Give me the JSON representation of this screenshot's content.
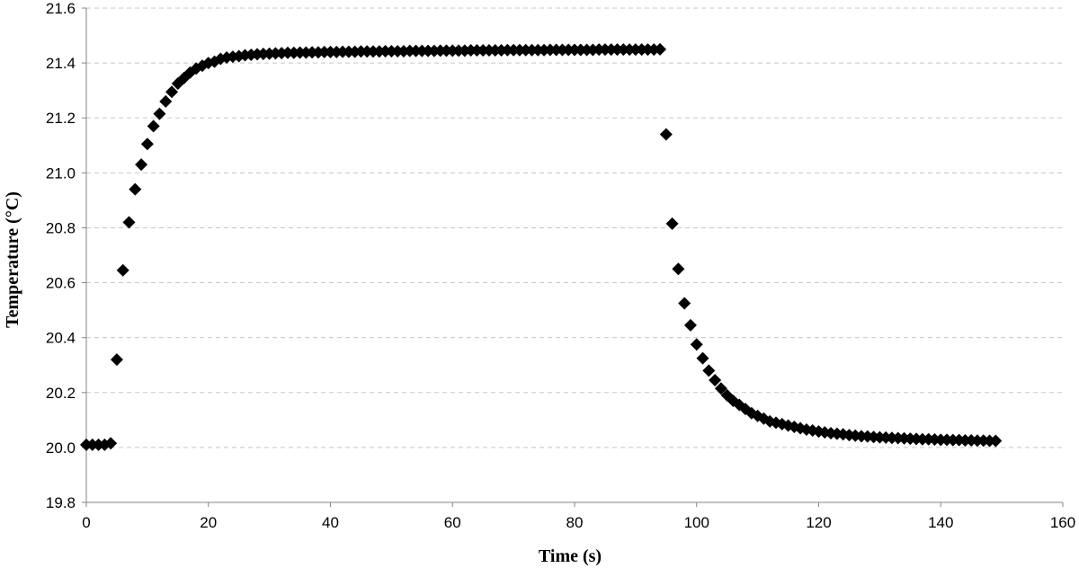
{
  "chart_data": {
    "type": "scatter",
    "title": "",
    "xlabel": "Time (s)",
    "ylabel": "Temperature (°C)",
    "xlim": [
      0,
      160
    ],
    "ylim": [
      19.8,
      21.6
    ],
    "xticks": [
      0,
      20,
      40,
      60,
      80,
      100,
      120,
      140,
      160
    ],
    "xtick_labels": [
      "0",
      "20",
      "40",
      "60",
      "80",
      "100",
      "120",
      "140",
      "160"
    ],
    "yticks": [
      19.8,
      20.0,
      20.2,
      20.4,
      20.6,
      20.8,
      21.0,
      21.2,
      21.4,
      21.6
    ],
    "ytick_labels": [
      "19.8",
      "20.0",
      "20.2",
      "20.4",
      "20.6",
      "20.8",
      "21.0",
      "21.2",
      "21.4",
      "21.6"
    ],
    "grid": "horizontal dashed",
    "legend": "none",
    "marker": "diamond",
    "marker_color": "#000000",
    "series": [
      {
        "x": [
          0,
          1,
          2,
          3,
          4,
          5,
          6,
          7,
          8,
          9,
          10,
          11,
          12,
          13,
          14,
          15,
          16,
          17,
          18,
          19,
          20,
          21,
          22,
          23,
          24,
          25,
          26,
          27,
          28,
          29,
          30,
          31,
          32,
          33,
          34,
          35,
          36,
          37,
          38,
          39,
          40,
          41,
          42,
          43,
          44,
          45,
          46,
          47,
          48,
          49,
          50,
          51,
          52,
          53,
          54,
          55,
          56,
          57,
          58,
          59,
          60,
          61,
          62,
          63,
          64,
          65,
          66,
          67,
          68,
          69,
          70,
          71,
          72,
          73,
          74,
          75,
          76,
          77,
          78,
          79,
          80,
          81,
          82,
          83,
          84,
          85,
          86,
          87,
          88,
          89,
          90,
          91,
          92,
          93,
          94,
          95,
          96,
          97,
          98,
          99,
          100,
          101,
          102,
          103,
          104,
          105,
          106,
          107,
          108,
          109,
          110,
          111,
          112,
          113,
          114,
          115,
          116,
          117,
          118,
          119,
          120,
          121,
          122,
          123,
          124,
          125,
          126,
          127,
          128,
          129,
          130,
          131,
          132,
          133,
          134,
          135,
          136,
          137,
          138,
          139,
          140,
          141,
          142,
          143,
          144,
          145,
          146,
          147,
          148,
          149
        ],
        "y": [
          20.01,
          20.01,
          20.01,
          20.01,
          20.015,
          20.32,
          20.645,
          20.82,
          20.94,
          21.03,
          21.105,
          21.17,
          21.215,
          21.26,
          21.295,
          21.325,
          21.345,
          21.365,
          21.38,
          21.39,
          21.4,
          21.405,
          21.415,
          21.42,
          21.423,
          21.425,
          21.428,
          21.43,
          21.432,
          21.433,
          21.434,
          21.435,
          21.436,
          21.437,
          21.437,
          21.438,
          21.438,
          21.439,
          21.439,
          21.44,
          21.44,
          21.44,
          21.441,
          21.441,
          21.441,
          21.442,
          21.442,
          21.442,
          21.442,
          21.443,
          21.443,
          21.443,
          21.443,
          21.444,
          21.444,
          21.444,
          21.444,
          21.444,
          21.445,
          21.445,
          21.445,
          21.445,
          21.445,
          21.446,
          21.446,
          21.446,
          21.446,
          21.446,
          21.446,
          21.447,
          21.447,
          21.447,
          21.447,
          21.447,
          21.447,
          21.447,
          21.448,
          21.448,
          21.448,
          21.448,
          21.448,
          21.448,
          21.448,
          21.448,
          21.449,
          21.449,
          21.449,
          21.449,
          21.449,
          21.449,
          21.449,
          21.449,
          21.449,
          21.449,
          21.45,
          21.14,
          20.815,
          20.65,
          20.525,
          20.445,
          20.375,
          20.325,
          20.28,
          20.245,
          20.215,
          20.19,
          20.17,
          20.155,
          20.14,
          20.125,
          20.115,
          20.105,
          20.095,
          20.09,
          20.085,
          20.08,
          20.075,
          20.07,
          20.065,
          20.062,
          20.058,
          20.055,
          20.052,
          20.05,
          20.048,
          20.045,
          20.043,
          20.041,
          20.04,
          20.038,
          20.037,
          20.036,
          20.035,
          20.034,
          20.033,
          20.032,
          20.031,
          20.03,
          20.03,
          20.029,
          20.028,
          20.028,
          20.027,
          20.027,
          20.026,
          20.026,
          20.025,
          20.025,
          20.024,
          20.024
        ]
      }
    ]
  }
}
